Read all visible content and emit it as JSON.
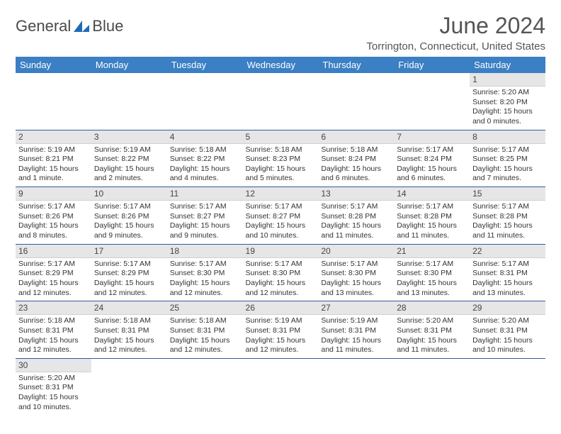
{
  "brand": {
    "name1": "General",
    "name2": "Blue"
  },
  "title": "June 2024",
  "location": "Torrington, Connecticut, United States",
  "colors": {
    "header_bg": "#3b7fc4",
    "header_fg": "#ffffff",
    "daynum_bg": "#e6e6e6",
    "row_border": "#2f5e9e",
    "brand_blue": "#1f6bb8"
  },
  "weekdays": [
    "Sunday",
    "Monday",
    "Tuesday",
    "Wednesday",
    "Thursday",
    "Friday",
    "Saturday"
  ],
  "weeks": [
    [
      null,
      null,
      null,
      null,
      null,
      null,
      {
        "n": "1",
        "sr": "Sunrise: 5:20 AM",
        "ss": "Sunset: 8:20 PM",
        "dl1": "Daylight: 15 hours",
        "dl2": "and 0 minutes."
      }
    ],
    [
      {
        "n": "2",
        "sr": "Sunrise: 5:19 AM",
        "ss": "Sunset: 8:21 PM",
        "dl1": "Daylight: 15 hours",
        "dl2": "and 1 minute."
      },
      {
        "n": "3",
        "sr": "Sunrise: 5:19 AM",
        "ss": "Sunset: 8:22 PM",
        "dl1": "Daylight: 15 hours",
        "dl2": "and 2 minutes."
      },
      {
        "n": "4",
        "sr": "Sunrise: 5:18 AM",
        "ss": "Sunset: 8:22 PM",
        "dl1": "Daylight: 15 hours",
        "dl2": "and 4 minutes."
      },
      {
        "n": "5",
        "sr": "Sunrise: 5:18 AM",
        "ss": "Sunset: 8:23 PM",
        "dl1": "Daylight: 15 hours",
        "dl2": "and 5 minutes."
      },
      {
        "n": "6",
        "sr": "Sunrise: 5:18 AM",
        "ss": "Sunset: 8:24 PM",
        "dl1": "Daylight: 15 hours",
        "dl2": "and 6 minutes."
      },
      {
        "n": "7",
        "sr": "Sunrise: 5:17 AM",
        "ss": "Sunset: 8:24 PM",
        "dl1": "Daylight: 15 hours",
        "dl2": "and 6 minutes."
      },
      {
        "n": "8",
        "sr": "Sunrise: 5:17 AM",
        "ss": "Sunset: 8:25 PM",
        "dl1": "Daylight: 15 hours",
        "dl2": "and 7 minutes."
      }
    ],
    [
      {
        "n": "9",
        "sr": "Sunrise: 5:17 AM",
        "ss": "Sunset: 8:26 PM",
        "dl1": "Daylight: 15 hours",
        "dl2": "and 8 minutes."
      },
      {
        "n": "10",
        "sr": "Sunrise: 5:17 AM",
        "ss": "Sunset: 8:26 PM",
        "dl1": "Daylight: 15 hours",
        "dl2": "and 9 minutes."
      },
      {
        "n": "11",
        "sr": "Sunrise: 5:17 AM",
        "ss": "Sunset: 8:27 PM",
        "dl1": "Daylight: 15 hours",
        "dl2": "and 9 minutes."
      },
      {
        "n": "12",
        "sr": "Sunrise: 5:17 AM",
        "ss": "Sunset: 8:27 PM",
        "dl1": "Daylight: 15 hours",
        "dl2": "and 10 minutes."
      },
      {
        "n": "13",
        "sr": "Sunrise: 5:17 AM",
        "ss": "Sunset: 8:28 PM",
        "dl1": "Daylight: 15 hours",
        "dl2": "and 11 minutes."
      },
      {
        "n": "14",
        "sr": "Sunrise: 5:17 AM",
        "ss": "Sunset: 8:28 PM",
        "dl1": "Daylight: 15 hours",
        "dl2": "and 11 minutes."
      },
      {
        "n": "15",
        "sr": "Sunrise: 5:17 AM",
        "ss": "Sunset: 8:28 PM",
        "dl1": "Daylight: 15 hours",
        "dl2": "and 11 minutes."
      }
    ],
    [
      {
        "n": "16",
        "sr": "Sunrise: 5:17 AM",
        "ss": "Sunset: 8:29 PM",
        "dl1": "Daylight: 15 hours",
        "dl2": "and 12 minutes."
      },
      {
        "n": "17",
        "sr": "Sunrise: 5:17 AM",
        "ss": "Sunset: 8:29 PM",
        "dl1": "Daylight: 15 hours",
        "dl2": "and 12 minutes."
      },
      {
        "n": "18",
        "sr": "Sunrise: 5:17 AM",
        "ss": "Sunset: 8:30 PM",
        "dl1": "Daylight: 15 hours",
        "dl2": "and 12 minutes."
      },
      {
        "n": "19",
        "sr": "Sunrise: 5:17 AM",
        "ss": "Sunset: 8:30 PM",
        "dl1": "Daylight: 15 hours",
        "dl2": "and 12 minutes."
      },
      {
        "n": "20",
        "sr": "Sunrise: 5:17 AM",
        "ss": "Sunset: 8:30 PM",
        "dl1": "Daylight: 15 hours",
        "dl2": "and 13 minutes."
      },
      {
        "n": "21",
        "sr": "Sunrise: 5:17 AM",
        "ss": "Sunset: 8:30 PM",
        "dl1": "Daylight: 15 hours",
        "dl2": "and 13 minutes."
      },
      {
        "n": "22",
        "sr": "Sunrise: 5:17 AM",
        "ss": "Sunset: 8:31 PM",
        "dl1": "Daylight: 15 hours",
        "dl2": "and 13 minutes."
      }
    ],
    [
      {
        "n": "23",
        "sr": "Sunrise: 5:18 AM",
        "ss": "Sunset: 8:31 PM",
        "dl1": "Daylight: 15 hours",
        "dl2": "and 12 minutes."
      },
      {
        "n": "24",
        "sr": "Sunrise: 5:18 AM",
        "ss": "Sunset: 8:31 PM",
        "dl1": "Daylight: 15 hours",
        "dl2": "and 12 minutes."
      },
      {
        "n": "25",
        "sr": "Sunrise: 5:18 AM",
        "ss": "Sunset: 8:31 PM",
        "dl1": "Daylight: 15 hours",
        "dl2": "and 12 minutes."
      },
      {
        "n": "26",
        "sr": "Sunrise: 5:19 AM",
        "ss": "Sunset: 8:31 PM",
        "dl1": "Daylight: 15 hours",
        "dl2": "and 12 minutes."
      },
      {
        "n": "27",
        "sr": "Sunrise: 5:19 AM",
        "ss": "Sunset: 8:31 PM",
        "dl1": "Daylight: 15 hours",
        "dl2": "and 11 minutes."
      },
      {
        "n": "28",
        "sr": "Sunrise: 5:20 AM",
        "ss": "Sunset: 8:31 PM",
        "dl1": "Daylight: 15 hours",
        "dl2": "and 11 minutes."
      },
      {
        "n": "29",
        "sr": "Sunrise: 5:20 AM",
        "ss": "Sunset: 8:31 PM",
        "dl1": "Daylight: 15 hours",
        "dl2": "and 10 minutes."
      }
    ],
    [
      {
        "n": "30",
        "sr": "Sunrise: 5:20 AM",
        "ss": "Sunset: 8:31 PM",
        "dl1": "Daylight: 15 hours",
        "dl2": "and 10 minutes."
      },
      null,
      null,
      null,
      null,
      null,
      null
    ]
  ]
}
